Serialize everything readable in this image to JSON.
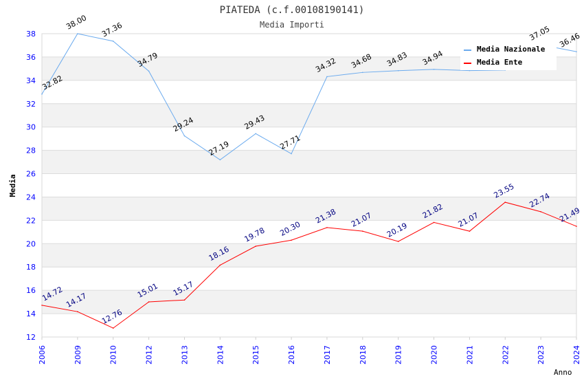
{
  "chart_data": {
    "type": "line",
    "title": "PIATEDA (c.f.00108190141)",
    "subtitle": "Media Importi",
    "xlabel": "Anno",
    "ylabel": "Media",
    "ylim": [
      12,
      38
    ],
    "yticks": [
      12,
      14,
      16,
      18,
      20,
      22,
      24,
      26,
      28,
      30,
      32,
      34,
      36,
      38
    ],
    "categories": [
      "2006",
      "2009",
      "2010",
      "2012",
      "2013",
      "2014",
      "2015",
      "2016",
      "2017",
      "2018",
      "2019",
      "2020",
      "2021",
      "2022",
      "2023",
      "2024"
    ],
    "legend_position": "top-right",
    "series": [
      {
        "name": "Media Nazionale",
        "color": "#6aaaee",
        "label_color": "#000000",
        "values": [
          32.82,
          38.0,
          37.36,
          34.79,
          29.24,
          27.19,
          29.43,
          27.71,
          34.32,
          34.68,
          34.83,
          34.94,
          34.84,
          34.88,
          37.05,
          36.46
        ],
        "labels_hidden": [
          12,
          13
        ]
      },
      {
        "name": "Media Ente",
        "color": "#ff0000",
        "label_color": "#000080",
        "values": [
          14.72,
          14.17,
          12.76,
          15.01,
          15.17,
          18.16,
          19.78,
          20.3,
          21.38,
          21.07,
          20.19,
          21.82,
          21.07,
          23.55,
          22.74,
          21.49
        ],
        "labels_hidden": []
      }
    ]
  }
}
